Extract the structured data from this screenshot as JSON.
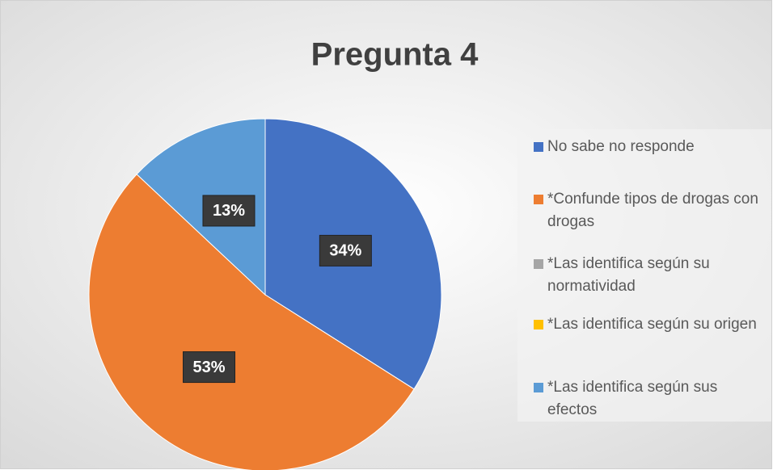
{
  "chart_data": {
    "type": "pie",
    "title": "Pregunta 4",
    "categories": [
      "No sabe no responde",
      "*Confunde tipos de drogas con drogas",
      "*Las identifica según su normatividad",
      "*Las identifica según su origen",
      "*Las identifica según sus efectos"
    ],
    "values": [
      34,
      53,
      0,
      0,
      13
    ],
    "value_labels": [
      "34%",
      "53%",
      null,
      null,
      "13%"
    ],
    "colors": [
      "#4472c4",
      "#ed7d31",
      "#a5a5a5",
      "#ffc000",
      "#5b9bd5"
    ],
    "legend": "right"
  }
}
